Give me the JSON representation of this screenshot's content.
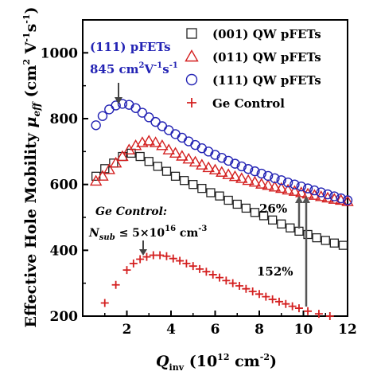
{
  "chart_data": {
    "type": "scatter",
    "xlim": [
      0,
      12
    ],
    "ylim": [
      200,
      1100
    ],
    "xticks": [
      "2",
      "4",
      "6",
      "8",
      "10",
      "12"
    ],
    "yticks": [
      "200",
      "400",
      "600",
      "800",
      "1000"
    ],
    "xlabel_main": "Q",
    "xlabel_sub": "inv",
    "xlabel_rest": " (10",
    "xlabel_exp": "12",
    "xlabel_unit": " cm",
    "xlabel_unit_exp": "-2",
    "xlabel_close": ")",
    "ylabel_main": "Effective Hole Mobility ",
    "ylabel_mu": "μ",
    "ylabel_sub": "eff",
    "ylabel_unit": " (cm",
    "ylabel_exp1": "2",
    "ylabel_unit2": " V",
    "ylabel_exp2": "-1",
    "ylabel_unit3": "s",
    "ylabel_exp3": "-1",
    "ylabel_close": ")",
    "grid": false,
    "legend_position": "top-right",
    "series": [
      {
        "name": "(001) QW pFETs",
        "marker": "square",
        "color": "#222222",
        "x": [
          0.6,
          1.0,
          1.4,
          1.8,
          2.2,
          2.6,
          3.0,
          3.4,
          3.8,
          4.2,
          4.6,
          5.0,
          5.4,
          5.8,
          6.2,
          6.6,
          7.0,
          7.4,
          7.8,
          8.2,
          8.6,
          9.0,
          9.4,
          9.8,
          10.2,
          10.6,
          11.0,
          11.4,
          11.8
        ],
        "y": [
          625,
          648,
          665,
          685,
          695,
          685,
          670,
          655,
          640,
          625,
          612,
          600,
          588,
          575,
          565,
          552,
          540,
          528,
          515,
          505,
          492,
          480,
          468,
          458,
          448,
          438,
          430,
          422,
          415
        ]
      },
      {
        "name": "(011) QW pFETs",
        "marker": "triangle",
        "color": "#d42020",
        "x": [
          0.6,
          0.9,
          1.2,
          1.5,
          1.8,
          2.1,
          2.4,
          2.7,
          3.0,
          3.3,
          3.6,
          3.9,
          4.2,
          4.5,
          4.8,
          5.1,
          5.4,
          5.7,
          6.0,
          6.3,
          6.6,
          6.9,
          7.2,
          7.5,
          7.8,
          8.1,
          8.4,
          8.7,
          9.0,
          9.3,
          9.6,
          9.9,
          10.2,
          10.5,
          10.8,
          11.1,
          11.4,
          11.7,
          12.0
        ],
        "y": [
          610,
          625,
          645,
          665,
          685,
          705,
          718,
          727,
          732,
          727,
          718,
          705,
          695,
          686,
          677,
          668,
          659,
          651,
          644,
          637,
          630,
          624,
          618,
          612,
          607,
          601,
          597,
          592,
          588,
          583,
          579,
          575,
          571,
          567,
          563,
          559,
          555,
          552,
          548
        ]
      },
      {
        "name": "(111) QW pFETs",
        "marker": "circle",
        "color": "#2323b4",
        "x": [
          0.6,
          0.9,
          1.2,
          1.5,
          1.8,
          2.1,
          2.4,
          2.7,
          3.0,
          3.3,
          3.6,
          3.9,
          4.2,
          4.5,
          4.8,
          5.1,
          5.4,
          5.7,
          6.0,
          6.3,
          6.6,
          6.9,
          7.2,
          7.5,
          7.8,
          8.1,
          8.4,
          8.7,
          9.0,
          9.3,
          9.6,
          9.9,
          10.2,
          10.5,
          10.8,
          11.1,
          11.4,
          11.7,
          12.0
        ],
        "y": [
          780,
          808,
          828,
          840,
          845,
          842,
          832,
          818,
          804,
          790,
          777,
          765,
          753,
          742,
          731,
          720,
          710,
          700,
          690,
          681,
          672,
          663,
          655,
          647,
          640,
          633,
          626,
          619,
          613,
          606,
          600,
          594,
          588,
          582,
          576,
          570,
          564,
          558,
          552
        ]
      },
      {
        "name": "Ge Control",
        "marker": "plus",
        "color": "#d42020",
        "x": [
          1.0,
          1.5,
          2.0,
          2.3,
          2.6,
          2.9,
          3.2,
          3.5,
          3.8,
          4.1,
          4.4,
          4.7,
          5.0,
          5.3,
          5.6,
          5.9,
          6.2,
          6.5,
          6.8,
          7.1,
          7.4,
          7.7,
          8.0,
          8.3,
          8.6,
          8.9,
          9.2,
          9.5,
          9.8,
          10.2,
          10.7,
          11.2
        ],
        "y": [
          240,
          295,
          340,
          360,
          373,
          380,
          385,
          385,
          382,
          375,
          368,
          360,
          352,
          343,
          335,
          326,
          317,
          308,
          300,
          292,
          283,
          275,
          267,
          259,
          251,
          244,
          237,
          230,
          224,
          215,
          207,
          200
        ]
      }
    ],
    "annotations": {
      "peak111_line1": "(111) pFETs",
      "peak111_line2_a": "845 cm",
      "peak111_line2_e1": "2",
      "peak111_line2_b": "V",
      "peak111_line2_e2": "-1",
      "peak111_line2_c": "s",
      "peak111_line2_e3": "-1",
      "gectrl_line1": "Ge Control:",
      "gectrl_N": "N",
      "gectrl_sub": "sub",
      "gectrl_mid": " ≤ 5×10",
      "gectrl_exp": "16",
      "gectrl_unit": " cm",
      "gectrl_unit_exp": "-3",
      "pct26": "26%",
      "pct152": "152%"
    }
  }
}
